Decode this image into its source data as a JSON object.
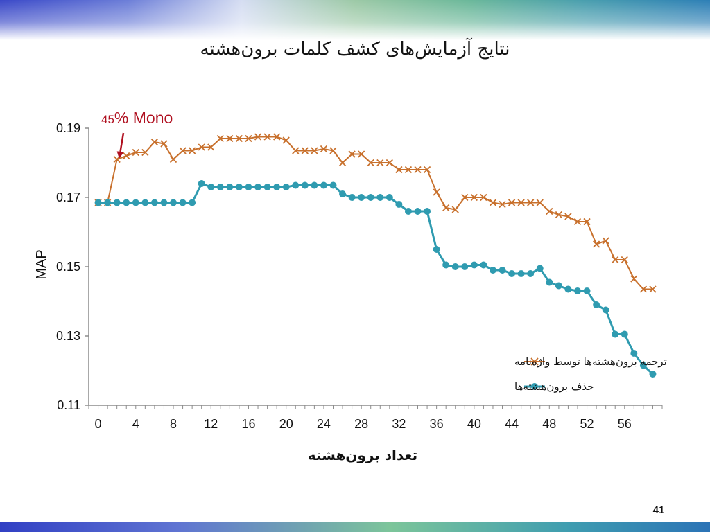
{
  "slide": {
    "title": "نتایج آزمایش‌های کشف کلمات برون‌هشته",
    "page_number": "41"
  },
  "colors": {
    "series_translate": "#c8702c",
    "series_remove": "#2f9bb0",
    "annotation": "#b01020",
    "axis": "#8c8c8c"
  },
  "chart_data": {
    "type": "line",
    "xlabel": "تعداد برون‌هشته",
    "ylabel": "MAP",
    "xlim": [
      -1,
      60
    ],
    "ylim": [
      0.11,
      0.19
    ],
    "x_ticks": [
      0,
      4,
      8,
      12,
      16,
      20,
      24,
      28,
      32,
      36,
      40,
      44,
      48,
      52,
      56
    ],
    "x_tick_labels": [
      "0",
      "4",
      "8",
      "12",
      "16",
      "20",
      "24",
      "28",
      "32",
      "36",
      "40",
      "44",
      "48",
      "52",
      "56"
    ],
    "y_ticks": [
      0.11,
      0.13,
      0.15,
      0.17,
      0.19
    ],
    "y_tick_labels": [
      "0.11",
      "0.13",
      "0.15",
      "0.17",
      "0.19"
    ],
    "grid": false,
    "legend_position": "lower-right",
    "annotation": {
      "number": "45",
      "text": "% Mono",
      "points_to_x": 2
    },
    "x": [
      0,
      1,
      2,
      3,
      4,
      5,
      6,
      7,
      8,
      9,
      10,
      11,
      12,
      13,
      14,
      15,
      16,
      17,
      18,
      19,
      20,
      21,
      22,
      23,
      24,
      25,
      26,
      27,
      28,
      29,
      30,
      31,
      32,
      33,
      34,
      35,
      36,
      37,
      38,
      39,
      40,
      41,
      42,
      43,
      44,
      45,
      46,
      47,
      48,
      49,
      50,
      51,
      52,
      53,
      54,
      55,
      56,
      57,
      58,
      59
    ],
    "series": [
      {
        "name": "ترجمه برون‌هشته‌ها توسط واژه‌نامه",
        "marker": "x",
        "values": [
          0.1685,
          0.1685,
          0.181,
          0.182,
          0.183,
          0.183,
          0.186,
          0.1855,
          0.181,
          0.1835,
          0.1835,
          0.1845,
          0.1845,
          0.187,
          0.187,
          0.187,
          0.187,
          0.1875,
          0.1875,
          0.1875,
          0.1865,
          0.1835,
          0.1835,
          0.1835,
          0.184,
          0.1835,
          0.18,
          0.1825,
          0.1825,
          0.18,
          0.18,
          0.18,
          0.178,
          0.178,
          0.178,
          0.178,
          0.1715,
          0.167,
          0.1665,
          0.17,
          0.17,
          0.17,
          0.1685,
          0.168,
          0.1685,
          0.1685,
          0.1685,
          0.1685,
          0.166,
          0.165,
          0.1645,
          0.163,
          0.163,
          0.1565,
          0.1575,
          0.152,
          0.152,
          0.1465,
          0.1435,
          0.1435
        ]
      },
      {
        "name": "حذف برون‌هشته‌ها",
        "marker": "o",
        "values": [
          0.1685,
          0.1685,
          0.1685,
          0.1685,
          0.1685,
          0.1685,
          0.1685,
          0.1685,
          0.1685,
          0.1685,
          0.1685,
          0.174,
          0.173,
          0.173,
          0.173,
          0.173,
          0.173,
          0.173,
          0.173,
          0.173,
          0.173,
          0.1735,
          0.1735,
          0.1735,
          0.1735,
          0.1735,
          0.171,
          0.17,
          0.17,
          0.17,
          0.17,
          0.17,
          0.168,
          0.166,
          0.166,
          0.166,
          0.155,
          0.1505,
          0.15,
          0.15,
          0.1505,
          0.1505,
          0.149,
          0.149,
          0.148,
          0.148,
          0.148,
          0.1495,
          0.1455,
          0.1445,
          0.1435,
          0.143,
          0.143,
          0.139,
          0.1375,
          0.1305,
          0.1305,
          0.125,
          0.1215,
          0.119
        ]
      }
    ]
  }
}
